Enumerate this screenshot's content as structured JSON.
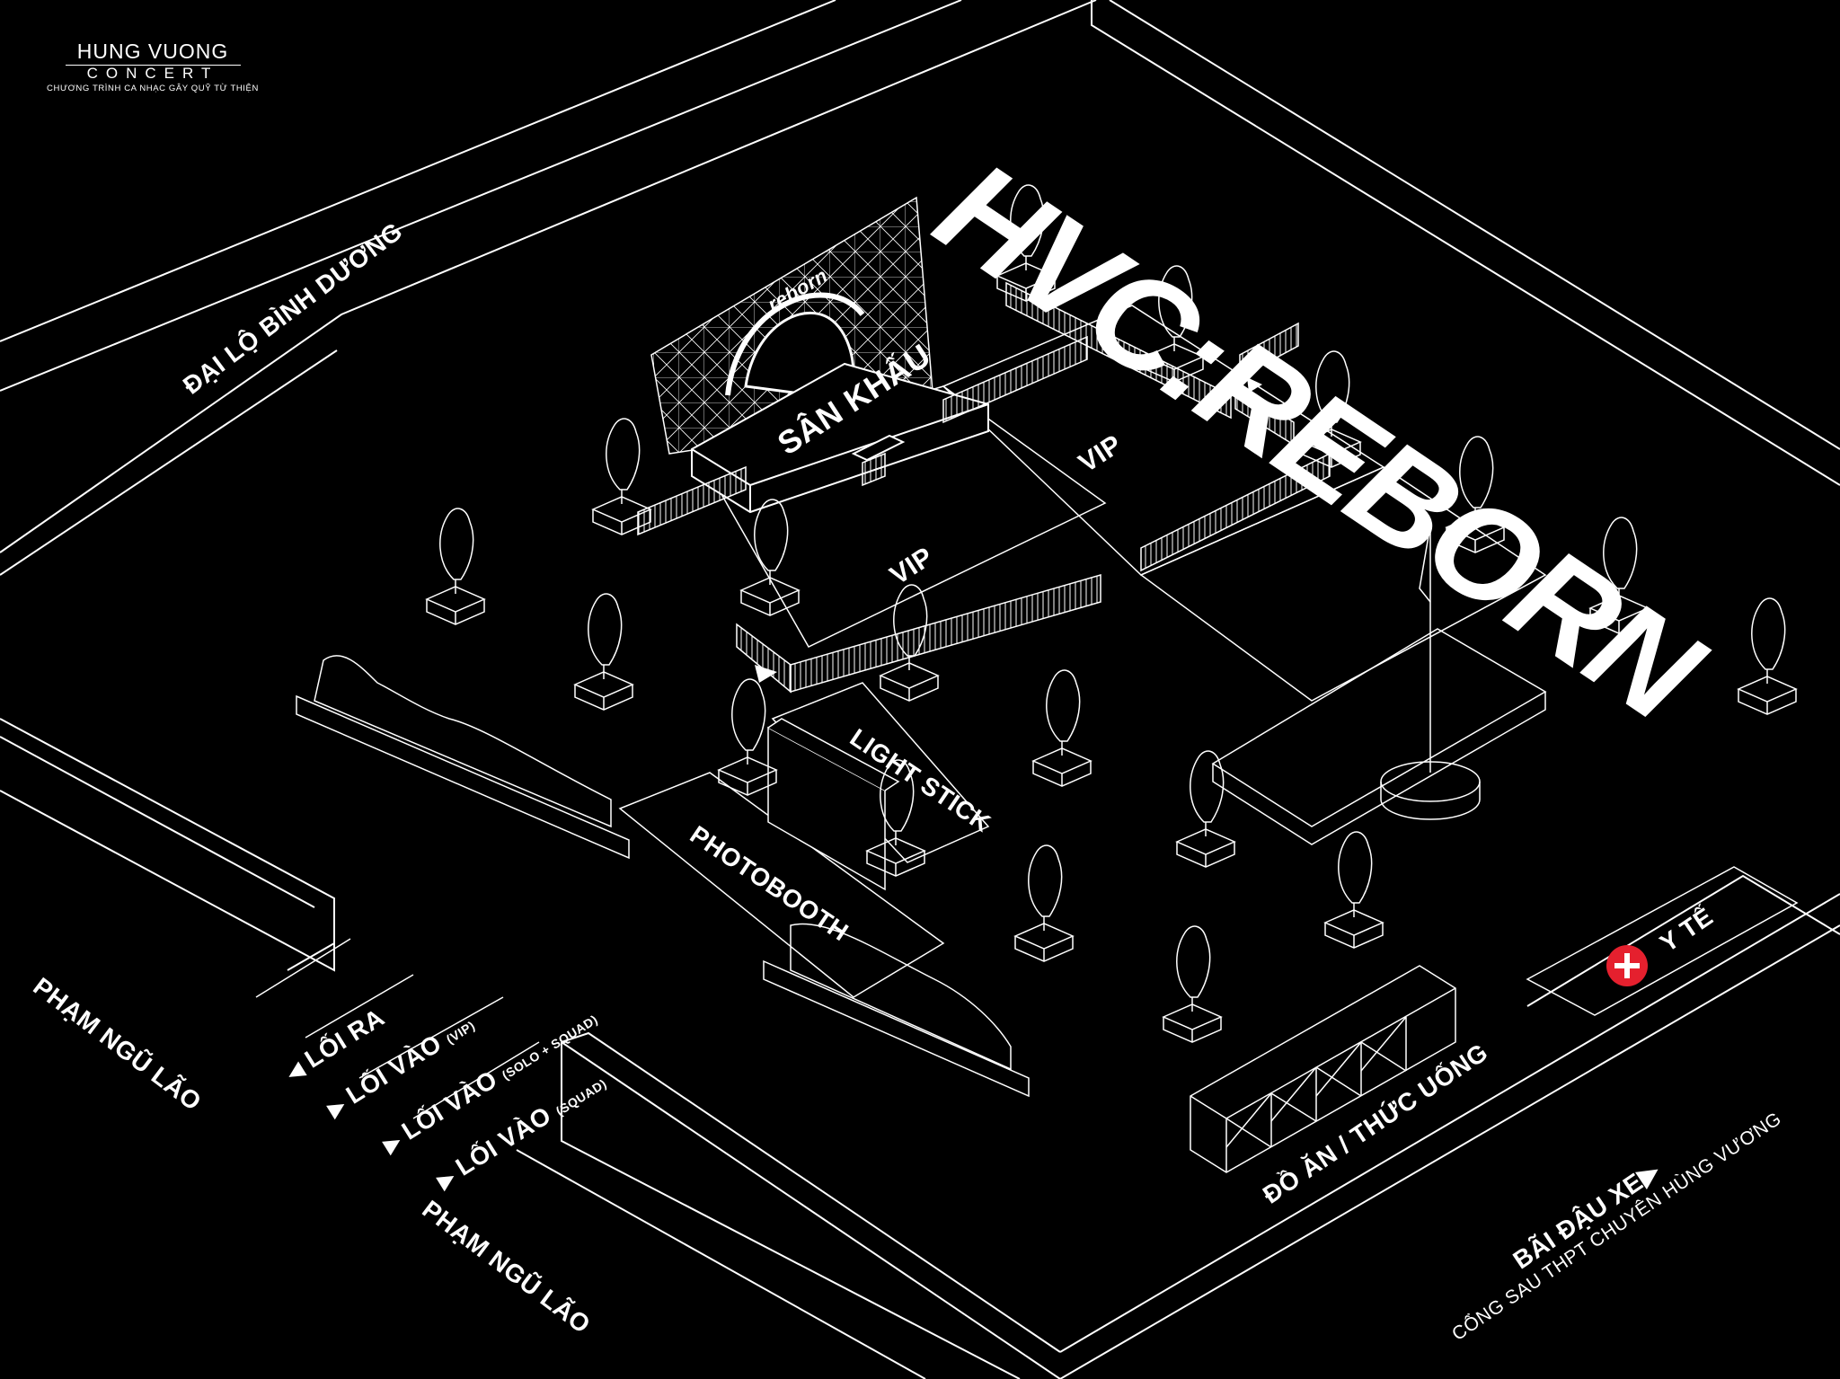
{
  "logo": {
    "line1": "HUNG VUONG",
    "line2": "CONCERT",
    "line3": "CHƯƠNG TRÌNH CA NHẠC GÂY QUỸ TỪ THIỆN"
  },
  "title": "HVC:REBORN",
  "stage": {
    "label": "SÂN KHẤU",
    "screen_text": "reborn"
  },
  "zones": {
    "vip1": "VIP",
    "vip2": "VIP",
    "lightstick": "LIGHT STICK",
    "photobooth": "PHOTOBOOTH",
    "food": "ĐỒ ĂN / THỨC UỐNG",
    "medical": "Y TẾ"
  },
  "roads": {
    "top": "ĐẠI LỘ BÌNH DƯƠNG",
    "left": "PHẠM NGŨ LÃO",
    "bottom": "PHẠM NGŨ LÃO"
  },
  "gates": [
    {
      "label": "LỐI RA",
      "note": ""
    },
    {
      "label": "LỐI VÀO",
      "note": "(VIP)"
    },
    {
      "label": "LỐI VÀO",
      "note": "(SOLO + SQUAD)"
    },
    {
      "label": "LỐI VÀO",
      "note": "(SQUAD)"
    }
  ],
  "parking": {
    "label": "BÃI ĐẬU XE",
    "sub": "CỔNG SAU THPT CHUYÊN HÙNG VƯƠNG"
  },
  "colors": {
    "background": "#000000",
    "lines": "#ffffff",
    "medical": "#e5202e"
  }
}
